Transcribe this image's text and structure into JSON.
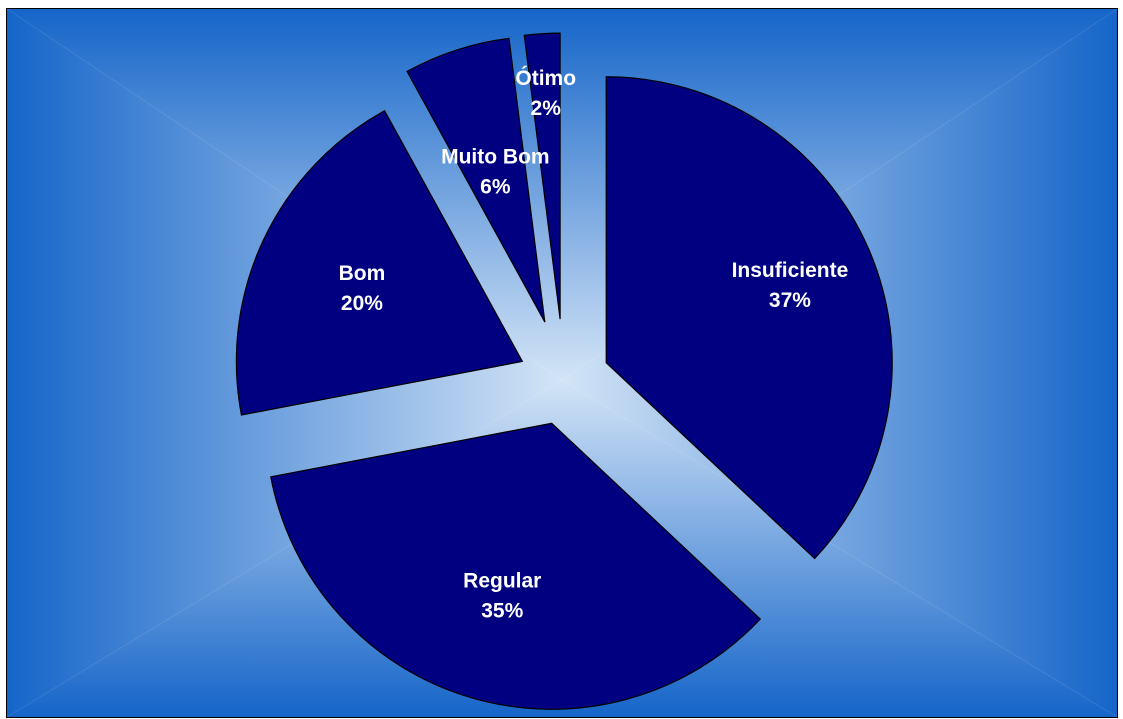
{
  "colors": {
    "slice_fill": "#000080",
    "slice_stroke": "#000000",
    "label_text": "#ffffff",
    "background_center": "#d3e4f6",
    "background_edge": "#1565c9"
  },
  "chart_data": {
    "type": "pie",
    "title": "",
    "exploded": true,
    "start_angle_deg": 0,
    "direction": "clockwise",
    "legend": "none",
    "slices": [
      {
        "label": "Insuficiente",
        "value": 37,
        "value_label": "37%"
      },
      {
        "label": "Regular",
        "value": 35,
        "value_label": "35%"
      },
      {
        "label": "Bom",
        "value": 20,
        "value_label": "20%"
      },
      {
        "label": "Muito Bom",
        "value": 6,
        "value_label": "6%"
      },
      {
        "label": "Ótimo",
        "value": 2,
        "value_label": "2%"
      }
    ]
  }
}
